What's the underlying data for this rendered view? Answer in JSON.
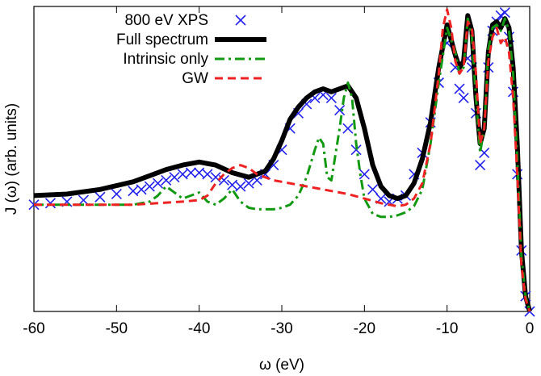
{
  "chart_data": {
    "type": "line",
    "title": "",
    "xlabel": "ω (eV)",
    "ylabel": "J (ω) (arb. units)",
    "xlim": [
      -60,
      0
    ],
    "ylim": [
      0,
      1
    ],
    "xticks": [
      -60,
      -50,
      -40,
      -30,
      -20,
      -10,
      0
    ],
    "xtick_labels": [
      "-60",
      "-50",
      "-40",
      "-30",
      "-20",
      "-10",
      "0"
    ],
    "y_tick_labels_shown": false,
    "grid": false,
    "legend_position": "top-left",
    "series": [
      {
        "name": "800 eV XPS",
        "style": "markers-x",
        "color": "#2222ee",
        "x": [
          -60,
          -58,
          -56,
          -54,
          -52,
          -50,
          -48,
          -47,
          -46,
          -45,
          -44,
          -43,
          -42,
          -41,
          -40,
          -39,
          -38,
          -37,
          -36,
          -35,
          -34,
          -33,
          -32,
          -31,
          -30,
          -29,
          -28,
          -27,
          -26,
          -25,
          -24,
          -23,
          -22,
          -21,
          -20,
          -19,
          -18,
          -17,
          -16,
          -15,
          -14,
          -13,
          -12,
          -11,
          -10,
          -9,
          -8.5,
          -8,
          -7.5,
          -7,
          -6.5,
          -6,
          -5.5,
          -5,
          -4.5,
          -4,
          -3.5,
          -3,
          -2.5,
          -2,
          -1.5,
          -1,
          -0.5,
          0
        ],
        "y": [
          0.35,
          0.355,
          0.36,
          0.365,
          0.375,
          0.385,
          0.395,
          0.4,
          0.41,
          0.42,
          0.43,
          0.44,
          0.45,
          0.455,
          0.455,
          0.45,
          0.44,
          0.43,
          0.415,
          0.41,
          0.42,
          0.43,
          0.45,
          0.48,
          0.53,
          0.6,
          0.65,
          0.68,
          0.7,
          0.71,
          0.7,
          0.66,
          0.6,
          0.53,
          0.45,
          0.4,
          0.37,
          0.36,
          0.37,
          0.38,
          0.45,
          0.52,
          0.62,
          0.75,
          0.88,
          0.8,
          0.73,
          0.7,
          0.83,
          0.8,
          0.65,
          0.48,
          0.52,
          0.8,
          0.92,
          0.95,
          0.97,
          0.98,
          0.9,
          0.72,
          0.45,
          0.2,
          0.05,
          0.0
        ]
      },
      {
        "name": "Full spectrum",
        "style": "solid-thick",
        "color": "#000000",
        "x": [
          -60,
          -56,
          -52,
          -48,
          -46,
          -44,
          -42,
          -40,
          -38,
          -36,
          -34,
          -32,
          -31,
          -30,
          -29,
          -28,
          -27,
          -26,
          -25,
          -24,
          -23,
          -22,
          -21,
          -20,
          -19,
          -18,
          -17,
          -16,
          -15,
          -14,
          -13,
          -12,
          -11,
          -10,
          -9,
          -8.5,
          -8,
          -7.5,
          -7,
          -6.5,
          -6,
          -5.5,
          -5,
          -4.5,
          -4,
          -3.5,
          -3,
          -2.5,
          -2,
          -1.5,
          -1,
          -0.5,
          0
        ],
        "y": [
          0.38,
          0.385,
          0.4,
          0.425,
          0.445,
          0.465,
          0.48,
          0.49,
          0.48,
          0.455,
          0.44,
          0.46,
          0.5,
          0.56,
          0.63,
          0.67,
          0.7,
          0.72,
          0.73,
          0.72,
          0.73,
          0.74,
          0.7,
          0.6,
          0.48,
          0.41,
          0.38,
          0.37,
          0.38,
          0.42,
          0.5,
          0.62,
          0.8,
          0.94,
          0.84,
          0.8,
          0.82,
          0.97,
          0.92,
          0.7,
          0.55,
          0.6,
          0.85,
          0.94,
          0.95,
          0.93,
          0.96,
          0.93,
          0.8,
          0.55,
          0.2,
          0.05,
          0.0
        ]
      },
      {
        "name": "Intrinsic only",
        "style": "dash-dot",
        "color": "#119911",
        "x": [
          -60,
          -56,
          -52,
          -48,
          -46,
          -45,
          -44,
          -43,
          -42,
          -41,
          -40,
          -39,
          -38,
          -37,
          -36,
          -35,
          -34,
          -33,
          -32,
          -31,
          -30,
          -29,
          -28,
          -27,
          -26,
          -25.5,
          -25,
          -24.5,
          -24,
          -23,
          -22.5,
          -22,
          -21.5,
          -21,
          -20.5,
          -20,
          -19,
          -18,
          -17,
          -16,
          -15,
          -14,
          -13,
          -12,
          -11,
          -10,
          -9,
          -8.5,
          -8,
          -7.5,
          -7,
          -6.5,
          -6,
          -5.5,
          -5,
          -4.5,
          -4,
          -3.5,
          -3,
          -2.5,
          -2,
          -1.5,
          -1,
          -0.5,
          0
        ],
        "y": [
          0.35,
          0.35,
          0.35,
          0.35,
          0.36,
          0.38,
          0.41,
          0.39,
          0.37,
          0.38,
          0.39,
          0.36,
          0.35,
          0.37,
          0.4,
          0.36,
          0.34,
          0.335,
          0.335,
          0.335,
          0.34,
          0.35,
          0.38,
          0.44,
          0.53,
          0.57,
          0.55,
          0.44,
          0.43,
          0.6,
          0.7,
          0.75,
          0.7,
          0.55,
          0.45,
          0.37,
          0.32,
          0.31,
          0.31,
          0.315,
          0.325,
          0.345,
          0.4,
          0.55,
          0.75,
          0.93,
          0.85,
          0.78,
          0.8,
          0.96,
          0.9,
          0.7,
          0.52,
          0.6,
          0.86,
          0.93,
          0.94,
          0.92,
          0.96,
          0.92,
          0.78,
          0.5,
          0.18,
          0.05,
          0.0
        ]
      },
      {
        "name": "GW",
        "style": "dashed",
        "color": "#ee2222",
        "x": [
          -60,
          -56,
          -52,
          -48,
          -45,
          -42,
          -40,
          -39,
          -38,
          -37,
          -36,
          -35,
          -34,
          -33,
          -32,
          -31,
          -30,
          -28,
          -26,
          -24,
          -22,
          -20,
          -18,
          -16,
          -15,
          -14,
          -13,
          -12,
          -11,
          -10.5,
          -10,
          -9.5,
          -9,
          -8.5,
          -8,
          -7.5,
          -7,
          -6.5,
          -6,
          -5.5,
          -5,
          -4.5,
          -4,
          -3.5,
          -3,
          -2.5,
          -2,
          -1.5,
          -1,
          -0.5,
          0
        ],
        "y": [
          0.35,
          0.35,
          0.35,
          0.35,
          0.355,
          0.36,
          0.365,
          0.38,
          0.42,
          0.45,
          0.47,
          0.48,
          0.47,
          0.45,
          0.44,
          0.43,
          0.425,
          0.415,
          0.405,
          0.395,
          0.385,
          0.37,
          0.355,
          0.345,
          0.35,
          0.37,
          0.42,
          0.55,
          0.78,
          0.93,
          0.99,
          0.93,
          0.82,
          0.78,
          0.8,
          0.95,
          0.93,
          0.78,
          0.55,
          0.6,
          0.82,
          0.9,
          0.93,
          0.88,
          0.9,
          0.85,
          0.7,
          0.45,
          0.15,
          0.04,
          0.0
        ]
      }
    ]
  }
}
